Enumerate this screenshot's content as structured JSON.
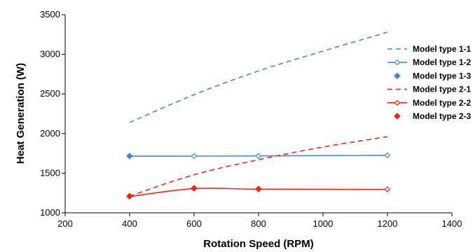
{
  "chart_data": {
    "type": "line",
    "title": "",
    "xlabel": "Rotation Speed (RPM)",
    "ylabel": "Heat Generation (W)",
    "xlim": [
      200,
      1400
    ],
    "ylim": [
      1000,
      3500
    ],
    "xticks": [
      200,
      400,
      600,
      800,
      1000,
      1200,
      1400
    ],
    "yticks": [
      1000,
      1500,
      2000,
      2500,
      3000,
      3500
    ],
    "grid": false,
    "legend_position": "right",
    "series": [
      {
        "name": "Model type 1-1",
        "color": "#4a86c8",
        "style": "dashed",
        "marker": "none",
        "points": [
          [
            400,
            2140
          ],
          [
            600,
            2490
          ],
          [
            800,
            2790
          ],
          [
            1000,
            3040
          ],
          [
            1200,
            3280
          ]
        ]
      },
      {
        "name": "Model type 1-2",
        "color": "#4a86c8",
        "style": "solid",
        "marker": "diamond-open",
        "points": [
          [
            400,
            1715
          ],
          [
            600,
            1715
          ],
          [
            800,
            1718
          ],
          [
            1200,
            1725
          ]
        ]
      },
      {
        "name": "Model type 1-3",
        "color": "#4a86c8",
        "style": "none",
        "marker": "diamond-filled",
        "points": [
          [
            400,
            1715
          ]
        ]
      },
      {
        "name": "Model type 2-1",
        "color": "#e8261c",
        "style": "dashed",
        "marker": "none",
        "points": [
          [
            400,
            1210
          ],
          [
            600,
            1480
          ],
          [
            800,
            1670
          ],
          [
            1000,
            1830
          ],
          [
            1200,
            1960
          ]
        ]
      },
      {
        "name": "Model type 2-2",
        "color": "#e8261c",
        "style": "solid",
        "marker": "diamond-open",
        "points": [
          [
            400,
            1205
          ],
          [
            600,
            1305
          ],
          [
            800,
            1298
          ],
          [
            1200,
            1295
          ]
        ]
      },
      {
        "name": "Model type 2-3",
        "color": "#e8261c",
        "style": "none",
        "marker": "diamond-filled",
        "points": [
          [
            400,
            1210
          ],
          [
            600,
            1310
          ],
          [
            800,
            1300
          ]
        ]
      }
    ]
  }
}
